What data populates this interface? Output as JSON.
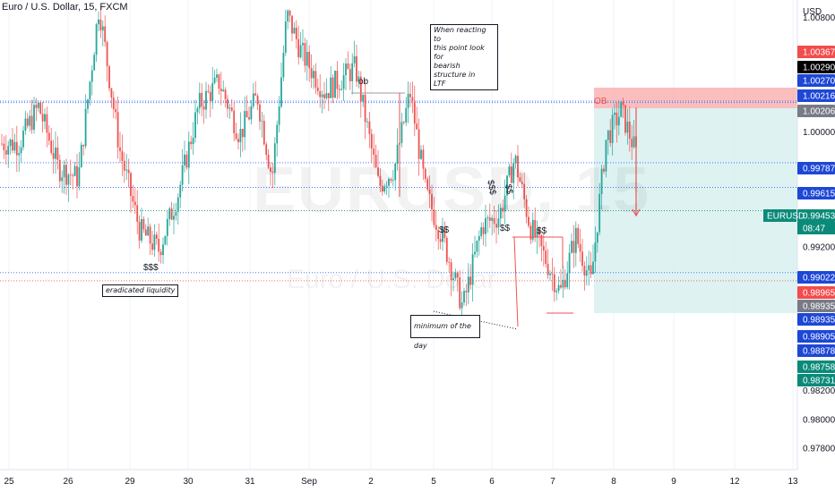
{
  "header": {
    "symbol_title": "Euro / U.S. Dollar, 15, FXCM"
  },
  "watermark": {
    "symbol": "EURUSD, 15",
    "description": "Euro / U.S. Dollar"
  },
  "colors": {
    "up_candle": "#26a69a",
    "down_candle": "#ef5350",
    "price_label": "#0b8a7a",
    "box_red": "#f8a8a8",
    "box_teal": "#d6efef",
    "blue_line": "#2962ff",
    "red_line": "#ef5350"
  },
  "chart_data": {
    "type": "candlestick",
    "symbol": "EURUSD",
    "timeframe": "15",
    "currency": "USD",
    "x_ticks": [
      "25",
      "26",
      "29",
      "30",
      "31",
      "Sep",
      "2",
      "5",
      "6",
      "7",
      "8",
      "9",
      "12",
      "13"
    ],
    "y_ticks": [
      1.008,
      1.0,
      0.992,
      0.982,
      0.98,
      0.978
    ],
    "ylim": [
      0.9765,
      1.0092
    ],
    "last_price": 0.99453,
    "countdown": "08:47",
    "approx_close_path": [
      [
        "25",
        0.9992
      ],
      [
        "25",
        1.0018
      ],
      [
        "25",
        0.9975
      ],
      [
        "26",
        0.9968
      ],
      [
        "26",
        1.0088
      ],
      [
        "26",
        0.9988
      ],
      [
        "29",
        0.9932
      ],
      [
        "29",
        0.9918
      ],
      [
        "29",
        0.9958
      ],
      [
        "30",
        1.0018
      ],
      [
        "30",
        1.0035
      ],
      [
        "30",
        0.9998
      ],
      [
        "31",
        1.0025
      ],
      [
        "31",
        0.9968
      ],
      [
        "31",
        1.0082
      ],
      [
        "31",
        1.0055
      ],
      [
        "Sep",
        1.0028
      ],
      [
        "Sep",
        1.0045
      ],
      [
        "2",
        0.9962
      ],
      [
        "2",
        0.9975
      ],
      [
        "2",
        1.0028
      ],
      [
        "2",
        0.9958
      ],
      [
        "5",
        0.9925
      ],
      [
        "5",
        0.9878
      ],
      [
        "5",
        0.9935
      ],
      [
        "6",
        0.9942
      ],
      [
        "6",
        0.9982
      ],
      [
        "6",
        0.9935
      ],
      [
        "6",
        0.9912
      ],
      [
        "7",
        0.9888
      ],
      [
        "7",
        0.9928
      ],
      [
        "7",
        0.9895
      ],
      [
        "7",
        0.9995
      ],
      [
        "8",
        1.0015
      ],
      [
        "8",
        0.9985
      ],
      [
        "8",
        1.0022
      ],
      [
        "8",
        0.9945
      ]
    ],
    "price_scale_labels": [
      {
        "text": "1.00367",
        "bg": "#f24c4c",
        "fg": "#ffffff"
      },
      {
        "text": "1.00290",
        "bg": "#000000",
        "fg": "#ffffff"
      },
      {
        "text": "1.00270",
        "bg": "#1e47d6",
        "fg": "#ffffff"
      },
      {
        "text": "1.00216",
        "bg": "#1e47d6",
        "fg": "#ffffff"
      },
      {
        "text": "1.00206",
        "bg": "#787b86",
        "fg": "#ffffff"
      },
      {
        "text": "0.99787",
        "bg": "#1e47d6",
        "fg": "#ffffff"
      },
      {
        "text": "0.99615",
        "bg": "#1e47d6",
        "fg": "#ffffff"
      },
      {
        "text": "0.99453",
        "bg": "#0b8a7a",
        "fg": "#ffffff"
      },
      {
        "text": "0.99022",
        "bg": "#1e47d6",
        "fg": "#ffffff"
      },
      {
        "text": "0.98965",
        "bg": "#f24c4c",
        "fg": "#ffffff"
      },
      {
        "text": "0.98935",
        "bg": "#787b86",
        "fg": "#ffffff"
      },
      {
        "text": "0.98935",
        "bg": "#1e47d6",
        "fg": "#ffffff"
      },
      {
        "text": "0.98905",
        "bg": "#1e47d6",
        "fg": "#ffffff"
      },
      {
        "text": "0.98878",
        "bg": "#1e47d6",
        "fg": "#ffffff"
      },
      {
        "text": "0.98758",
        "bg": "#0b8a7a",
        "fg": "#ffffff"
      },
      {
        "text": "0.98731",
        "bg": "#0b8a7a",
        "fg": "#ffffff"
      }
    ],
    "horizontal_lines": [
      {
        "price": 1.00216,
        "color": "#2962ff",
        "style": "dotted"
      },
      {
        "price": 1.00206,
        "color": "#2962ff",
        "style": "dotted"
      },
      {
        "price": 0.99787,
        "color": "#2962ff",
        "style": "dotted"
      },
      {
        "price": 0.99615,
        "color": "#2962ff",
        "style": "dotted"
      },
      {
        "price": 0.99453,
        "color": "#0b8a7a",
        "style": "dotted"
      },
      {
        "price": 0.99022,
        "color": "#2962ff",
        "style": "dotted"
      },
      {
        "price": 0.98965,
        "color": "#ef5350",
        "style": "dotted"
      }
    ],
    "annotations": [
      {
        "text": "ob"
      },
      {
        "text": "OB"
      },
      {
        "text": "$$$"
      },
      {
        "text": "$$"
      },
      {
        "text": "$$"
      },
      {
        "text": "$$"
      },
      {
        "text": "$$"
      },
      {
        "text": "$$$"
      }
    ],
    "notes": [
      {
        "text": "When reacting to\nthis point look for\nbearish structure in\nLTF"
      },
      {
        "text": "eradicated liquidity"
      },
      {
        "text": "minimum of the day"
      }
    ],
    "legend_symbol": "EURUSD",
    "axis_currency_label": "USD"
  }
}
